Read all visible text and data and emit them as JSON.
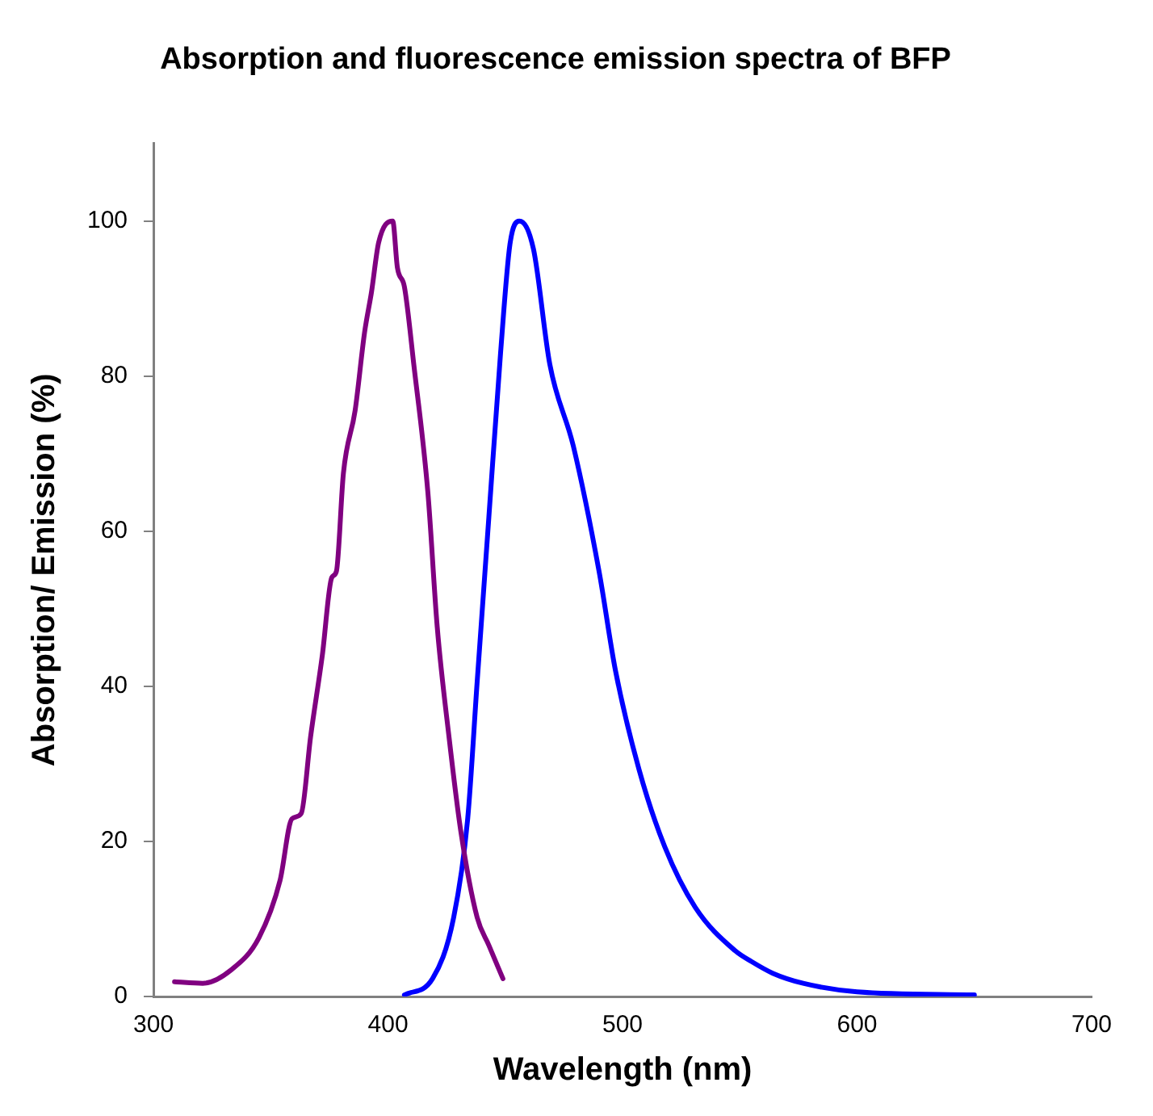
{
  "chart_data": {
    "type": "line",
    "title": "Absorption and fluorescence emission spectra of BFP",
    "xlabel": "Wavelength (nm)",
    "ylabel": "Absorption/ Emission (%)",
    "xlim": [
      300,
      700
    ],
    "xticks": [
      300,
      400,
      500,
      600,
      700
    ],
    "ylim": [
      0,
      110
    ],
    "yticks": [
      0,
      20,
      40,
      60,
      80,
      100
    ],
    "grid": false,
    "legend": false,
    "marker": "none",
    "line_style": "solid",
    "series": [
      {
        "color": "#800080",
        "x": [
          309,
          321,
          333,
          345,
          354,
          359,
          363,
          367,
          372,
          376,
          378,
          381,
          386,
          390,
          393,
          396,
          402,
          404,
          407,
          411,
          417,
          421,
          426,
          431,
          438,
          443,
          449
        ],
        "values": [
          1.9,
          1.7,
          3.4,
          7.6,
          15,
          22.9,
          23.6,
          33.5,
          44,
          54,
          54.8,
          67.5,
          75.6,
          85.6,
          90.9,
          97.2,
          100,
          94,
          91.5,
          81.5,
          65,
          47.6,
          33.5,
          21.4,
          10.2,
          6.6,
          2.3
        ]
      },
      {
        "color": "#0000ff",
        "x": [
          407,
          419,
          428,
          434,
          438,
          443,
          448,
          452,
          456,
          462,
          469,
          479,
          490,
          497,
          507,
          518,
          531,
          548,
          555,
          564,
          577,
          600,
          650
        ],
        "values": [
          0.2,
          2.3,
          10.2,
          23,
          40.5,
          61.8,
          83,
          97,
          100,
          96.4,
          81.5,
          71,
          54.8,
          42,
          29.3,
          19.3,
          11.5,
          5.9,
          4.5,
          3,
          1.7,
          0.6,
          0.2
        ]
      }
    ]
  }
}
